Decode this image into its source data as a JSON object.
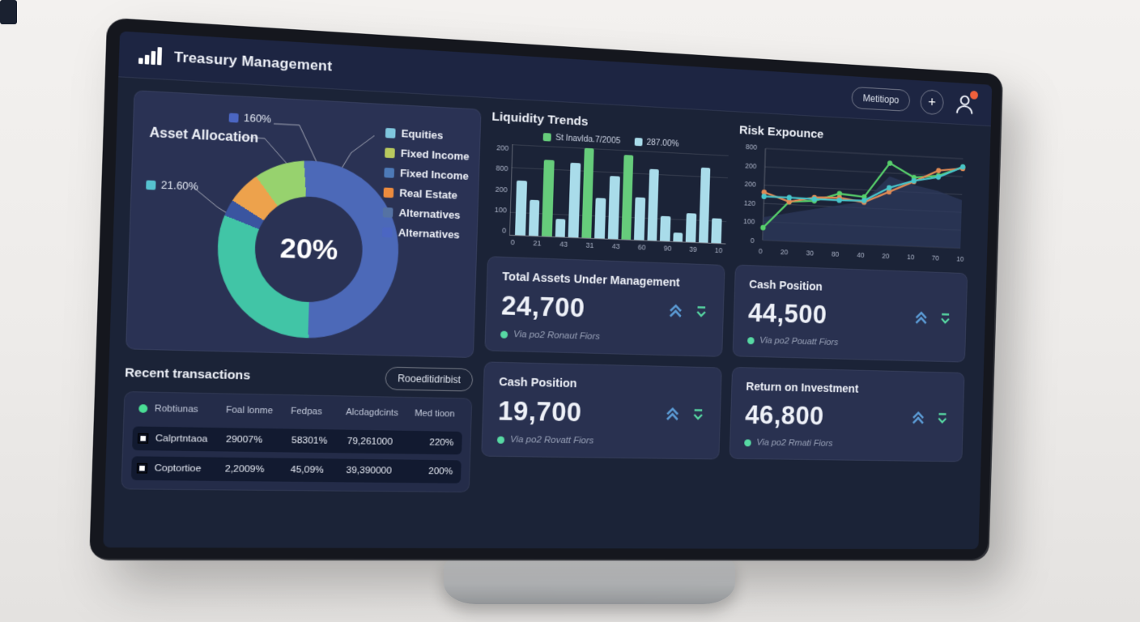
{
  "colors": {
    "bar_green": "#66cc7b",
    "bar_cyan": "#a9dcea",
    "chevron_up_blue": "#5b9bd5",
    "chevron_down_green": "#57d9a3",
    "note_dot_green": "#57d9a3",
    "badge_orange": "#f0613c",
    "table_dot_green": "#4ade95",
    "grid_line": "rgba(255,255,255,0.14)"
  },
  "header": {
    "title": "Treasury Management",
    "menu_button": "Metitiopo",
    "add_button": "+"
  },
  "asset_allocation": {
    "title": "Asset Allocation",
    "callouts": [
      {
        "label": "160%",
        "color": "#4b66c2"
      },
      {
        "label": "21.60%",
        "color": "#56c2cf"
      }
    ],
    "legend": [
      {
        "label": "Equities",
        "color": "#7fc6dd"
      },
      {
        "label": "Fixed Income",
        "color": "#b8c95e"
      },
      {
        "label": "Fixed Income",
        "color": "#4d7ab8"
      },
      {
        "label": "Real Estate",
        "color": "#ec8b3e"
      },
      {
        "label": "Alternatives",
        "color": "#5572a3"
      },
      {
        "label": "Alternatives",
        "color": "#4b66c2"
      }
    ],
    "chart_data": {
      "type": "pie",
      "donut": true,
      "center_label": "20%",
      "start_angle_deg": -5,
      "segments": [
        {
          "label": "Blue",
          "value": 51,
          "color": "#4c69b8"
        },
        {
          "label": "Teal",
          "value": 31,
          "color": "#41c5a6"
        },
        {
          "label": "Dark Blue",
          "value": 3,
          "color": "#3a55a0"
        },
        {
          "label": "Orange",
          "value": 6,
          "color": "#eda24c"
        },
        {
          "label": "Green",
          "value": 9,
          "color": "#97d26e"
        }
      ]
    }
  },
  "liquidity_trends": {
    "title": "Liquidity Trends",
    "legend": [
      {
        "label": "St Inavlda.7/2005",
        "color": "#66cc7b"
      },
      {
        "label": "287.00%",
        "color": "#a9dcea"
      }
    ],
    "chart_data": {
      "type": "bar",
      "ylim": [
        0,
        200
      ],
      "y_ticks": [
        "200",
        "800",
        "200",
        "100",
        "0"
      ],
      "x_ticks": [
        "0",
        "21",
        "43",
        "31",
        "43",
        "60",
        "90",
        "39",
        "10"
      ],
      "values": [
        120,
        80,
        170,
        40,
        165,
        200,
        90,
        140,
        190,
        95,
        160,
        55,
        20,
        65,
        170,
        55
      ],
      "bar_colors": [
        "cyan",
        "cyan",
        "green",
        "cyan",
        "cyan",
        "green",
        "cyan",
        "cyan",
        "green",
        "cyan",
        "cyan",
        "cyan",
        "cyan",
        "cyan",
        "cyan",
        "cyan"
      ],
      "grid": true,
      "legend_position": "top"
    }
  },
  "risk_exposure": {
    "title": "Risk Expounce",
    "chart_data": {
      "type": "line",
      "ylim": [
        0,
        220
      ],
      "y_ticks": [
        "800",
        "200",
        "200",
        "120",
        "100",
        "0"
      ],
      "x_ticks": [
        "0",
        "20",
        "30",
        "80",
        "40",
        "20",
        "10",
        "70",
        "10"
      ],
      "series": [
        {
          "name": "green",
          "color": "#57d06b",
          "values": [
            30,
            95,
            100,
            120,
            115,
            200,
            168,
            175,
            200
          ]
        },
        {
          "name": "orange",
          "color": "#e08a54",
          "values": [
            115,
            95,
            108,
            110,
            102,
            130,
            158,
            188,
            196
          ]
        },
        {
          "name": "teal",
          "color": "#47c4c9",
          "values": [
            105,
            105,
            104,
            104,
            106,
            140,
            160,
            172,
            200
          ]
        }
      ],
      "area": {
        "color": "#2e3a5c",
        "values": [
          55,
          68,
          80,
          92,
          104,
          168,
          150,
          138,
          118
        ]
      },
      "grid": true
    }
  },
  "metric_cards": [
    {
      "title": "Total Assets Under Management",
      "value": "24,700",
      "note": "Via po2 Ronaut Fiors"
    },
    {
      "title": "Cash Position",
      "value": "44,500",
      "note": "Via po2 Pouatt Fiors"
    },
    {
      "title": "Cash Position",
      "value": "19,700",
      "note": "Via po2 Rovatt Fiors"
    },
    {
      "title": "Return on Investment",
      "value": "46,800",
      "note": "Via po2 Rmati Fiors"
    }
  ],
  "transactions": {
    "title": "Recent transactions",
    "button_label": "Rooeditidribist",
    "columns": [
      "Robtiunas",
      "Foal lonme",
      "Fedpas",
      "Alcdagdcints",
      "Med tioon"
    ],
    "rows": [
      {
        "cells": [
          "Calprtntaoa",
          "29007%",
          "58301%",
          "79,261000",
          "220%"
        ]
      },
      {
        "cells": [
          "Coptortioe",
          "2,2009%",
          "45,09%",
          "39,390000",
          "200%"
        ]
      }
    ]
  }
}
